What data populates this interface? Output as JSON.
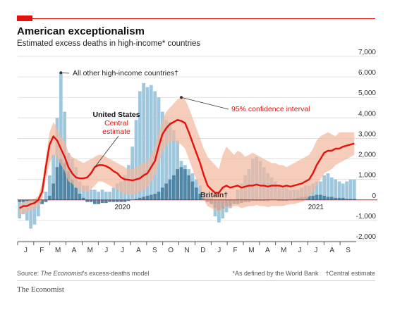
{
  "header": {
    "title": "American exceptionalism",
    "subtitle": "Estimated excess deaths in high-income* countries"
  },
  "colors": {
    "accent": "#e3120b",
    "us_line": "#e3120b",
    "ci_band": "#f2b8a0",
    "other_bars": "#9fc7dd",
    "britain_bars": "#4f86a6",
    "grid": "#d9d9d9"
  },
  "footer": {
    "source_prefix": "Source: ",
    "source_italic": "The Economist",
    "source_suffix": "'s excess-deaths model",
    "note_high_income": "*As defined by the World Bank",
    "note_central": "†Central estimate",
    "brand": "The Economist"
  },
  "chart_data": {
    "type": "area",
    "title": "American exceptionalism",
    "subtitle": "Estimated excess deaths in high-income* countries",
    "ylim": [
      -2000,
      7000
    ],
    "y_ticks": [
      -2000,
      -1000,
      0,
      1000,
      2000,
      3000,
      4000,
      5000,
      6000,
      7000
    ],
    "y_tick_labels": [
      "-2,000",
      "-1,000",
      "0",
      "1,000",
      "2,000",
      "3,000",
      "4,000",
      "5,000",
      "6,000",
      "7,000"
    ],
    "grid": true,
    "x_month_labels": [
      "J",
      "F",
      "M",
      "A",
      "M",
      "J",
      "J",
      "A",
      "S",
      "O",
      "N",
      "D",
      "J",
      "F",
      "M",
      "A",
      "M",
      "J",
      "J",
      "A",
      "S"
    ],
    "x_year_labels": [
      {
        "label": "2020",
        "month_index": 6
      },
      {
        "label": "2021",
        "month_index": 18
      }
    ],
    "annotations": {
      "other": "All other high-income countries†",
      "us_title": "United States",
      "us_central1": "Central",
      "us_central2": "estimate",
      "ci": "95% confidence interval",
      "britain": "Britain†"
    },
    "weeks": 90,
    "series": [
      {
        "name": "United States central estimate",
        "type": "line",
        "values": [
          -400,
          -300,
          -300,
          -200,
          -150,
          0,
          400,
          1600,
          2700,
          3100,
          2900,
          2500,
          2100,
          1600,
          1300,
          1100,
          1050,
          1050,
          1100,
          1300,
          1600,
          1700,
          1700,
          1650,
          1550,
          1400,
          1300,
          1100,
          1000,
          980,
          950,
          1000,
          1050,
          1200,
          1300,
          1600,
          1900,
          2600,
          3200,
          3500,
          3700,
          3800,
          3900,
          3850,
          3750,
          3300,
          2800,
          2300,
          1800,
          1200,
          700,
          500,
          350,
          350,
          600,
          700,
          600,
          650,
          700,
          600,
          650,
          700,
          700,
          750,
          700,
          700,
          650,
          700,
          700,
          700,
          650,
          700,
          650,
          700,
          750,
          800,
          900,
          1000,
          1300,
          1700,
          2000,
          2300,
          2400,
          2400,
          2500,
          2500,
          2600,
          2650,
          2700,
          2750
        ]
      },
      {
        "name": "United States 95% confidence interval upper",
        "type": "band_upper",
        "values": [
          -200,
          -150,
          -100,
          0,
          50,
          200,
          800,
          2100,
          3300,
          3800,
          3500,
          3100,
          2900,
          2300,
          2100,
          2000,
          1900,
          1800,
          1900,
          2000,
          2100,
          2200,
          2200,
          2100,
          2000,
          1900,
          1800,
          1700,
          1600,
          1500,
          1500,
          1600,
          1700,
          1800,
          1900,
          2200,
          2600,
          3300,
          3900,
          4300,
          4500,
          4700,
          4900,
          5000,
          4900,
          4500,
          4000,
          3500,
          3000,
          2500,
          2100,
          1900,
          1700,
          1500,
          2200,
          2600,
          2400,
          2200,
          2400,
          2300,
          2100,
          2200,
          2300,
          2200,
          2100,
          2000,
          1900,
          1800,
          1800,
          1700,
          1700,
          1600,
          1700,
          1800,
          1900,
          2000,
          2100,
          2200,
          2500,
          2900,
          3100,
          3200,
          3300,
          3200,
          3100,
          3300,
          3300,
          3300,
          3300,
          3300
        ]
      },
      {
        "name": "United States 95% confidence interval lower",
        "type": "band_lower",
        "values": [
          -700,
          -650,
          -600,
          -500,
          -450,
          -300,
          0,
          1000,
          1800,
          2200,
          2100,
          1700,
          1400,
          900,
          800,
          600,
          500,
          400,
          400,
          500,
          700,
          900,
          900,
          800,
          700,
          600,
          500,
          400,
          300,
          250,
          250,
          300,
          400,
          500,
          600,
          900,
          1200,
          1800,
          2300,
          2700,
          2800,
          2900,
          2800,
          2700,
          2500,
          2000,
          1500,
          1000,
          500,
          0,
          -300,
          -400,
          -500,
          -600,
          -400,
          -300,
          -400,
          -300,
          -300,
          -400,
          -350,
          -300,
          -300,
          -250,
          -300,
          -300,
          -350,
          -300,
          -300,
          -300,
          -300,
          -250,
          -200,
          -200,
          -150,
          -100,
          0,
          150,
          400,
          700,
          1000,
          1300,
          1400,
          1500,
          1700,
          1800,
          1900,
          2000,
          2100,
          2200
        ]
      },
      {
        "name": "All other high-income countries†",
        "type": "bar",
        "values": [
          -900,
          -700,
          -1000,
          -1400,
          -1200,
          -800,
          -200,
          400,
          1200,
          2200,
          4000,
          6200,
          4300,
          2300,
          2000,
          1600,
          900,
          700,
          700,
          500,
          500,
          400,
          500,
          400,
          400,
          600,
          800,
          900,
          1200,
          1700,
          2600,
          3900,
          5300,
          5700,
          5500,
          5600,
          5300,
          5000,
          4300,
          3900,
          3800,
          3400,
          2900,
          1900,
          1700,
          1500,
          1300,
          1000,
          700,
          400,
          200,
          100,
          -800,
          -1100,
          -900,
          -600,
          -400,
          -100,
          500,
          800,
          1200,
          1500,
          2000,
          2100,
          1900,
          1600,
          1300,
          1100,
          900,
          700,
          600,
          600,
          500,
          500,
          500,
          600,
          700,
          700,
          800,
          900,
          900,
          1200,
          1300,
          1100,
          1000,
          900,
          800,
          900,
          1000,
          1000
        ]
      },
      {
        "name": "Britain†",
        "type": "bar",
        "values": [
          -100,
          -100,
          -50,
          -50,
          -100,
          -150,
          -200,
          -100,
          200,
          800,
          1600,
          2000,
          1800,
          1400,
          1000,
          600,
          300,
          100,
          -100,
          -100,
          -200,
          -200,
          -150,
          -150,
          -100,
          -100,
          -100,
          -100,
          -100,
          -50,
          0,
          50,
          100,
          150,
          200,
          250,
          300,
          400,
          600,
          800,
          1000,
          1200,
          1500,
          1600,
          1500,
          1200,
          900,
          600,
          300,
          100,
          -100,
          -200,
          -400,
          -500,
          -400,
          -300,
          -300,
          -200,
          -200,
          -150,
          -100,
          -100,
          -50,
          -50,
          -50,
          -50,
          -50,
          0,
          0,
          -50,
          -50,
          -50,
          0,
          50,
          100,
          150,
          150,
          200,
          200,
          250,
          250,
          200,
          150,
          150,
          100,
          100,
          100,
          50,
          50,
          50
        ]
      }
    ]
  }
}
